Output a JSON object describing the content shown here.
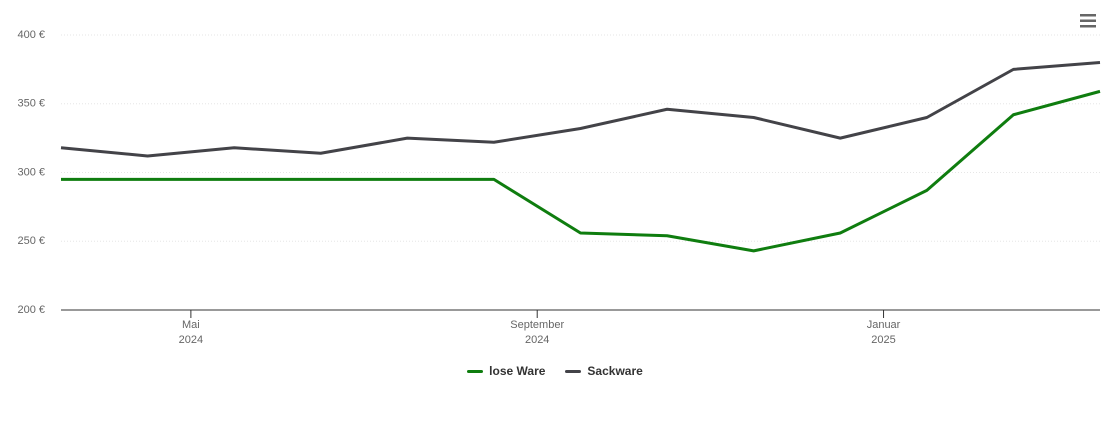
{
  "chart_data": {
    "type": "line",
    "x": [
      "2024-03",
      "2024-04",
      "2024-05",
      "2024-06",
      "2024-07",
      "2024-08",
      "2024-09",
      "2024-10",
      "2024-11",
      "2024-12",
      "2025-01",
      "2025-02",
      "2025-03"
    ],
    "series": [
      {
        "name": "lose Ware",
        "color": "#0f7d0f",
        "values": [
          295,
          295,
          295,
          295,
          295,
          295,
          256,
          254,
          243,
          256,
          287,
          342,
          359
        ]
      },
      {
        "name": "Sackware",
        "color": "#434348",
        "values": [
          318,
          312,
          318,
          314,
          325,
          322,
          332,
          346,
          340,
          325,
          340,
          375,
          380
        ]
      }
    ],
    "xlim": [
      "2024-03",
      "2025-03"
    ],
    "xticks": [
      {
        "value": "2024-05",
        "label": "Mai\n2024"
      },
      {
        "value": "2024-09",
        "label": "September\n2024"
      },
      {
        "value": "2025-01",
        "label": "Januar\n2025"
      }
    ],
    "ylim": [
      200,
      400
    ],
    "yticks": [
      {
        "value": 200,
        "label": "200 €"
      },
      {
        "value": 250,
        "label": "250 €"
      },
      {
        "value": 300,
        "label": "300 €"
      },
      {
        "value": 350,
        "label": "350 €"
      },
      {
        "value": 400,
        "label": "400 €"
      }
    ],
    "grid": true,
    "legend": "bottom"
  }
}
